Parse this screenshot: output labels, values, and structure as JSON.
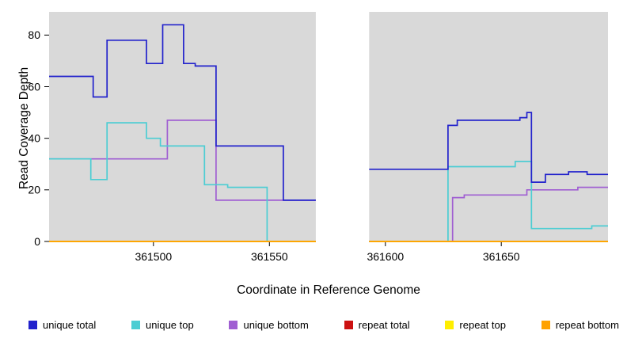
{
  "chart_data": {
    "type": "line",
    "subtype": "step",
    "title": "",
    "xlabel": "Coordinate in Reference Genome",
    "ylabel": "Read Coverage Depth",
    "xlim": [
      361455,
      361696
    ],
    "ylim": [
      0,
      89
    ],
    "xticks": [
      361500,
      361550,
      361600,
      361650
    ],
    "yticks": [
      0,
      20,
      40,
      60,
      80
    ],
    "grid": false,
    "legend_position": "bottom",
    "plot_bg": "#d9d9d9",
    "gap_region": [
      361570,
      361593
    ],
    "series": [
      {
        "name": "unique total",
        "color": "#2222cc",
        "points": [
          [
            361455,
            64
          ],
          [
            361474,
            56
          ],
          [
            361480,
            78
          ],
          [
            361497,
            69
          ],
          [
            361504,
            84
          ],
          [
            361513,
            69
          ],
          [
            361518,
            68
          ],
          [
            361527,
            37
          ],
          [
            361556,
            16
          ],
          [
            361570,
            null
          ],
          [
            361593,
            28
          ],
          [
            361627,
            45
          ],
          [
            361631,
            47
          ],
          [
            361658,
            48
          ],
          [
            361661,
            50
          ],
          [
            361663,
            23
          ],
          [
            361669,
            26
          ],
          [
            361679,
            27
          ],
          [
            361687,
            26
          ],
          [
            361696,
            26
          ]
        ]
      },
      {
        "name": "unique top",
        "color": "#4ccdd3",
        "points": [
          [
            361455,
            32
          ],
          [
            361473,
            24
          ],
          [
            361480,
            46
          ],
          [
            361497,
            40
          ],
          [
            361503,
            37
          ],
          [
            361522,
            22
          ],
          [
            361532,
            21
          ],
          [
            361549,
            0
          ],
          [
            361570,
            null
          ],
          [
            361593,
            0
          ],
          [
            361627,
            29
          ],
          [
            361656,
            31
          ],
          [
            361663,
            5
          ],
          [
            361689,
            6
          ],
          [
            361696,
            6
          ]
        ]
      },
      {
        "name": "unique bottom",
        "color": "#a05fd2",
        "points": [
          [
            361455,
            32
          ],
          [
            361506,
            47
          ],
          [
            361527,
            16
          ],
          [
            361570,
            null
          ],
          [
            361593,
            0
          ],
          [
            361629,
            17
          ],
          [
            361634,
            18
          ],
          [
            361661,
            20
          ],
          [
            361683,
            21
          ],
          [
            361696,
            21
          ]
        ]
      },
      {
        "name": "repeat total",
        "color": "#cc1111",
        "points": [
          [
            361455,
            0
          ],
          [
            361570,
            null
          ],
          [
            361593,
            0
          ],
          [
            361696,
            0
          ]
        ]
      },
      {
        "name": "repeat top",
        "color": "#ffee00",
        "points": [
          [
            361455,
            0
          ],
          [
            361570,
            null
          ],
          [
            361593,
            0
          ],
          [
            361696,
            0
          ]
        ]
      },
      {
        "name": "repeat bottom",
        "color": "#ffa200",
        "points": [
          [
            361455,
            0
          ],
          [
            361570,
            null
          ],
          [
            361593,
            0
          ],
          [
            361696,
            0
          ]
        ]
      }
    ]
  }
}
